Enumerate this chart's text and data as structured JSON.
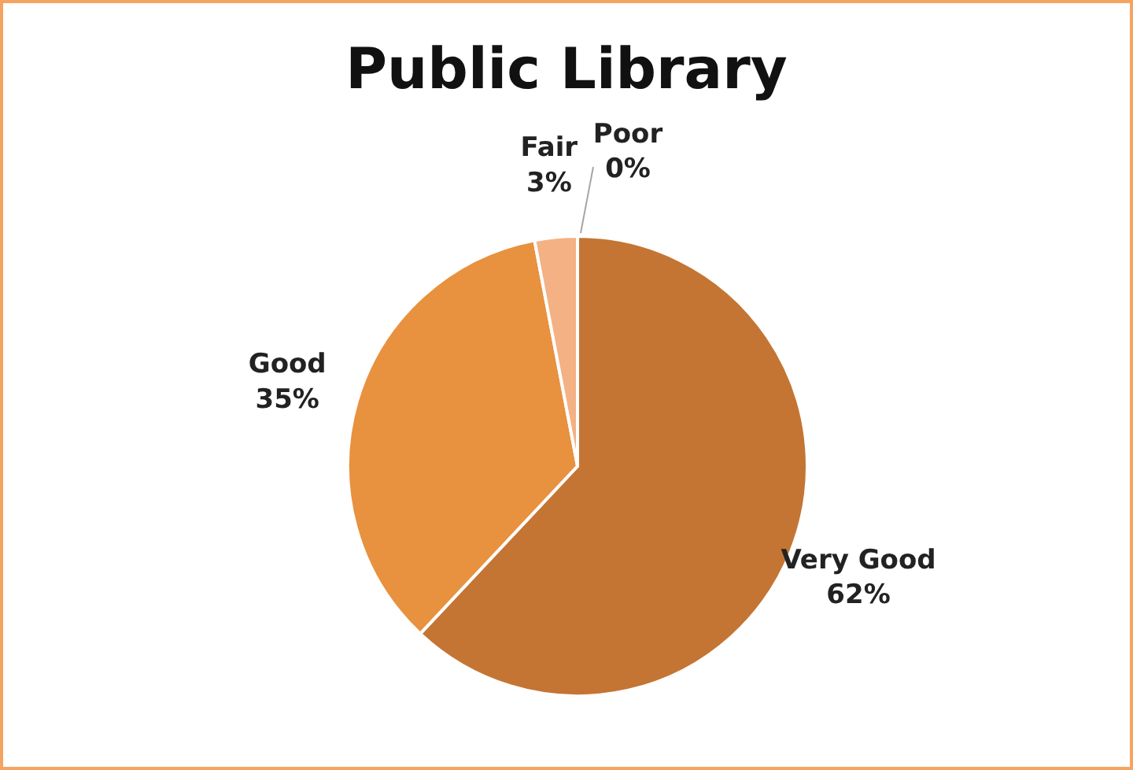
{
  "chart_data": {
    "type": "pie",
    "title": "Public Library",
    "categories": [
      "Very Good",
      "Good",
      "Fair",
      "Poor"
    ],
    "values": [
      62,
      35,
      3,
      0
    ],
    "colors": [
      "#c47533",
      "#e8913f",
      "#f4b183",
      "#f8cbad"
    ],
    "value_labels": [
      "62%",
      "35%",
      "3%",
      "0%"
    ],
    "legend": false
  }
}
